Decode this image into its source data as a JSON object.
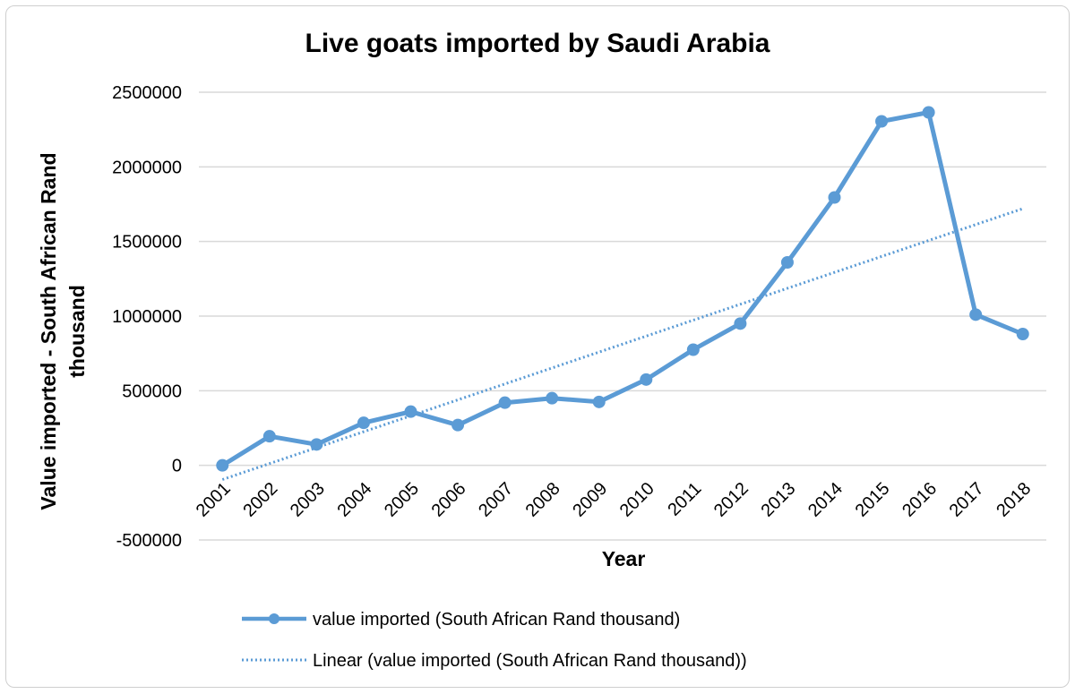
{
  "chart_data": {
    "type": "line",
    "title": "Live goats imported by Saudi Arabia",
    "xlabel": "Year",
    "ylabel": "Value imported - South African Rand thousand",
    "ylabel_lines": [
      "Value imported - South African Rand",
      "thousand"
    ],
    "categories": [
      "2001",
      "2002",
      "2003",
      "2004",
      "2005",
      "2006",
      "2007",
      "2008",
      "2009",
      "2010",
      "2011",
      "2012",
      "2013",
      "2014",
      "2015",
      "2016",
      "2017",
      "2018"
    ],
    "ylim": [
      -500000,
      2500000
    ],
    "yticks": [
      -500000,
      0,
      500000,
      1000000,
      1500000,
      2000000,
      2500000
    ],
    "grid": true,
    "legend_position": "bottom",
    "series": [
      {
        "name": "value imported (South African Rand thousand)",
        "values": [
          0,
          195000,
          140000,
          285000,
          360000,
          270000,
          420000,
          450000,
          425000,
          575000,
          775000,
          950000,
          1360000,
          1795000,
          2305000,
          2365000,
          1010000,
          880000
        ],
        "color": "#5b9bd5",
        "style": "solid-markers"
      },
      {
        "name": "Linear (value imported (South African Rand thousand))",
        "trend_start": -95000,
        "trend_end": 1720000,
        "color": "#5b9bd5",
        "style": "dotted"
      }
    ]
  }
}
